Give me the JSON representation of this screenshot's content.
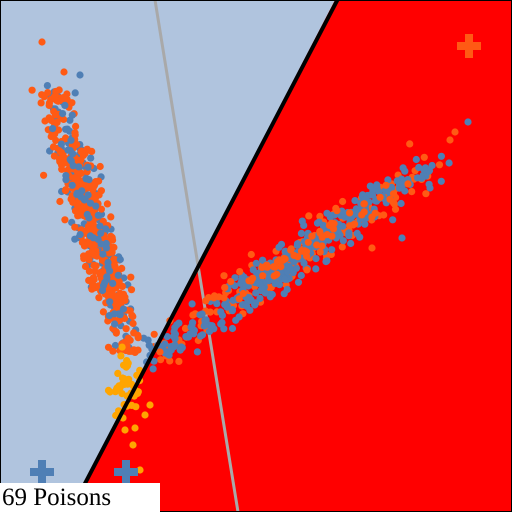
{
  "caption": "69 Poisons",
  "colors": {
    "region_left": "#b0c4de",
    "region_right": "#ff0000",
    "boundary": "#000000",
    "reference_line": "#a9a9a9",
    "class_blue": "#4f7fb5",
    "class_orange": "#ff5a14",
    "poison": "#ffa500",
    "frame": "#000000"
  },
  "icons": {
    "class_marker": "plus-cross",
    "points": "filled-circle"
  },
  "layers": [
    "decision-regions",
    "reference-line",
    "blue-cluster",
    "orange-cluster",
    "poison-points",
    "decision-boundary",
    "class-markers"
  ]
}
